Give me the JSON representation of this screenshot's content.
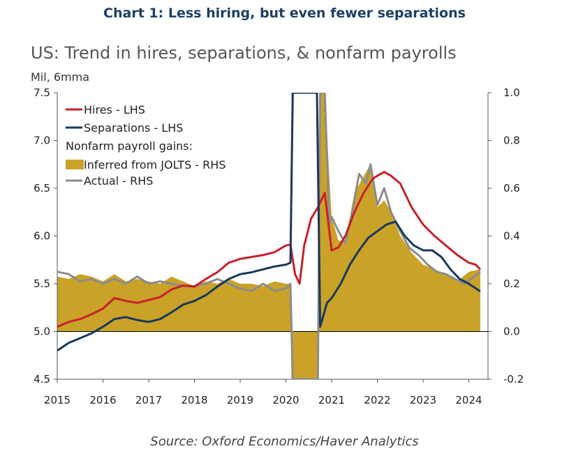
{
  "heading": "Chart 1: Less hiring, but even fewer separations",
  "source": "Source: Oxford Economics/Haver Analytics",
  "chart_data": {
    "type": "line",
    "title": "US: Trend in hires, separations, & nonfarm payrolls",
    "ylabel": "Mil, 6mma",
    "x_ticks": [
      "2015",
      "2016",
      "2017",
      "2018",
      "2019",
      "2020",
      "2021",
      "2022",
      "2023",
      "2024"
    ],
    "y_left": {
      "lim": [
        4.5,
        7.5
      ],
      "ticks": [
        "7.5",
        "7.0",
        "6.5",
        "6.0",
        "5.5",
        "5.0",
        "4.5"
      ]
    },
    "y_right": {
      "lim": [
        -0.2,
        1.0
      ],
      "ticks": [
        "1.0",
        "0.8",
        "0.6",
        "0.4",
        "0.2",
        "0.0",
        "-0.2"
      ]
    },
    "legend": {
      "hires": "Hires - LHS",
      "separations": "Separations - LHS",
      "group": "Nonfarm payroll gains:",
      "inferred": "Inferred from JOLTS - RHS",
      "actual": "Actual - RHS"
    },
    "colors": {
      "hires": "#c8202a",
      "separations": "#17375e",
      "inferred": "#c9a227",
      "actual": "#8c8c8c"
    },
    "series": [
      {
        "name": "Hires - LHS",
        "axis": "left",
        "x": [
          2015.0,
          2015.25,
          2015.5,
          2015.75,
          2016.0,
          2016.25,
          2016.5,
          2016.75,
          2017.0,
          2017.25,
          2017.5,
          2017.75,
          2018.0,
          2018.25,
          2018.5,
          2018.75,
          2019.0,
          2019.25,
          2019.5,
          2019.75,
          2020.0,
          2020.1,
          2020.2,
          2020.3,
          2020.4,
          2020.55,
          2020.7,
          2020.85,
          2021.0,
          2021.15,
          2021.3,
          2021.5,
          2021.7,
          2021.9,
          2022.0,
          2022.15,
          2022.3,
          2022.5,
          2022.75,
          2023.0,
          2023.25,
          2023.5,
          2023.75,
          2024.0,
          2024.15,
          2024.25
        ],
        "values": [
          5.05,
          5.1,
          5.13,
          5.18,
          5.24,
          5.35,
          5.32,
          5.3,
          5.33,
          5.36,
          5.44,
          5.48,
          5.47,
          5.55,
          5.62,
          5.72,
          5.76,
          5.78,
          5.8,
          5.83,
          5.9,
          5.91,
          5.6,
          5.5,
          5.9,
          6.18,
          6.3,
          6.45,
          5.85,
          5.88,
          6.0,
          6.25,
          6.45,
          6.6,
          6.63,
          6.67,
          6.63,
          6.55,
          6.3,
          6.12,
          6.0,
          5.9,
          5.8,
          5.72,
          5.7,
          5.65
        ]
      },
      {
        "name": "Separations - LHS",
        "axis": "left",
        "x": [
          2015.0,
          2015.25,
          2015.5,
          2015.75,
          2016.0,
          2016.25,
          2016.5,
          2016.75,
          2017.0,
          2017.25,
          2017.5,
          2017.75,
          2018.0,
          2018.25,
          2018.5,
          2018.75,
          2019.0,
          2019.25,
          2019.5,
          2019.75,
          2020.0,
          2020.1,
          2020.15,
          2020.55,
          2020.68,
          2020.75,
          2020.9,
          2021.0,
          2021.2,
          2021.4,
          2021.6,
          2021.8,
          2022.0,
          2022.2,
          2022.4,
          2022.6,
          2022.8,
          2023.0,
          2023.2,
          2023.4,
          2023.6,
          2023.8,
          2024.0,
          2024.25
        ],
        "values": [
          4.8,
          4.88,
          4.93,
          4.98,
          5.05,
          5.13,
          5.15,
          5.12,
          5.1,
          5.13,
          5.2,
          5.28,
          5.32,
          5.38,
          5.47,
          5.55,
          5.6,
          5.62,
          5.65,
          5.68,
          5.7,
          5.72,
          7.5,
          7.5,
          7.5,
          5.05,
          5.3,
          5.35,
          5.5,
          5.7,
          5.85,
          5.98,
          6.05,
          6.12,
          6.15,
          6.0,
          5.9,
          5.85,
          5.85,
          5.78,
          5.65,
          5.55,
          5.5,
          5.42
        ]
      },
      {
        "name": "Inferred from JOLTS - RHS",
        "axis": "right",
        "x": [
          2015.0,
          2015.25,
          2015.5,
          2015.75,
          2016.0,
          2016.25,
          2016.5,
          2016.75,
          2017.0,
          2017.25,
          2017.5,
          2017.75,
          2018.0,
          2018.25,
          2018.5,
          2018.75,
          2019.0,
          2019.25,
          2019.5,
          2019.75,
          2020.0,
          2020.1,
          2020.12,
          2020.7,
          2020.73,
          2020.85,
          2020.95,
          2021.0,
          2021.15,
          2021.3,
          2021.5,
          2021.7,
          2021.85,
          2022.0,
          2022.15,
          2022.3,
          2022.5,
          2022.75,
          2023.0,
          2023.25,
          2023.5,
          2023.75,
          2024.0,
          2024.25
        ],
        "values": [
          0.23,
          0.22,
          0.24,
          0.23,
          0.21,
          0.24,
          0.21,
          0.22,
          0.21,
          0.2,
          0.23,
          0.21,
          0.19,
          0.21,
          0.2,
          0.22,
          0.2,
          0.2,
          0.19,
          0.21,
          0.2,
          0.2,
          -0.2,
          -0.2,
          1.0,
          1.0,
          0.65,
          0.48,
          0.38,
          0.38,
          0.58,
          0.65,
          0.7,
          0.52,
          0.55,
          0.5,
          0.4,
          0.33,
          0.28,
          0.26,
          0.24,
          0.21,
          0.25,
          0.26
        ]
      },
      {
        "name": "Actual - RHS",
        "axis": "right",
        "x": [
          2015.0,
          2015.25,
          2015.5,
          2015.75,
          2016.0,
          2016.25,
          2016.5,
          2016.75,
          2017.0,
          2017.25,
          2017.5,
          2017.75,
          2018.0,
          2018.25,
          2018.5,
          2018.75,
          2019.0,
          2019.25,
          2019.5,
          2019.75,
          2020.0,
          2020.1,
          2020.15,
          2020.7,
          2020.75,
          2020.85,
          2020.95,
          2021.0,
          2021.15,
          2021.3,
          2021.45,
          2021.6,
          2021.75,
          2021.85,
          2022.0,
          2022.15,
          2022.3,
          2022.5,
          2022.7,
          2022.9,
          2023.1,
          2023.3,
          2023.5,
          2023.7,
          2023.9,
          2024.05,
          2024.25
        ],
        "values": [
          0.25,
          0.24,
          0.21,
          0.22,
          0.2,
          0.22,
          0.2,
          0.23,
          0.2,
          0.21,
          0.2,
          0.19,
          0.19,
          0.2,
          0.22,
          0.2,
          0.18,
          0.17,
          0.2,
          0.17,
          0.18,
          0.2,
          -0.2,
          -0.2,
          1.0,
          1.0,
          0.45,
          0.48,
          0.42,
          0.37,
          0.5,
          0.66,
          0.62,
          0.7,
          0.53,
          0.6,
          0.5,
          0.42,
          0.35,
          0.32,
          0.28,
          0.25,
          0.24,
          0.22,
          0.2,
          0.22,
          0.25
        ]
      }
    ]
  }
}
